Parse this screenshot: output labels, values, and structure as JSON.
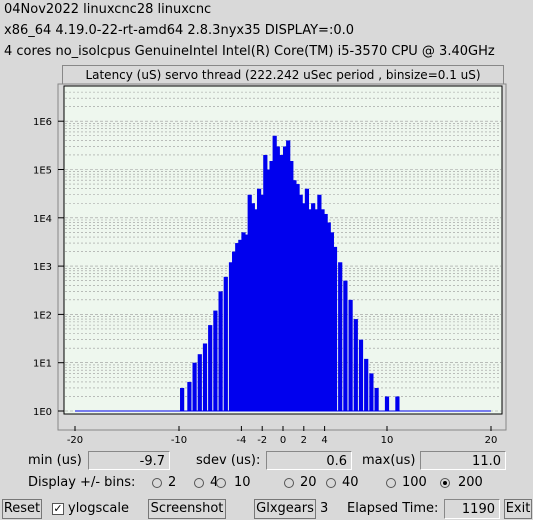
{
  "header": {
    "line1": "04Nov2022 linuxcnc28 linuxcnc",
    "line2": " x86_64  4.19.0-22-rt-amd64  2.8.3nyx35  DISPLAY=:0.0",
    "line3": " 4 cores  no_isolcpus   GenuineIntel  Intel(R) Core(TM) i5-3570 CPU @ 3.40GHz"
  },
  "plot_title": "Latency (uS) servo thread (222.242 uSec period , binsize=0.1 uS)",
  "colors": {
    "bars": "#0000ee",
    "plot_bg": "#eef7ee",
    "grid": "#888888"
  },
  "chart_data": {
    "type": "bar",
    "title": "Latency (uS) servo thread (222.242 uSec period , binsize=0.1 uS)",
    "xlabel": "",
    "ylabel": "",
    "xlim": [
      -20,
      20
    ],
    "log_y": true,
    "y_tick_labels": [
      "1E0",
      "1E1",
      "1E2",
      "1E3",
      "1E4",
      "1E5",
      "1E6"
    ],
    "x_tick_labels": [
      "-20",
      "-10",
      "-4",
      "-2",
      "0",
      "2",
      "4",
      "10",
      "20"
    ],
    "x_ticks": [
      -20,
      -10,
      -4,
      -2,
      0,
      2,
      4,
      10,
      20
    ],
    "grid": true,
    "series": [
      {
        "x": [
          -9.7,
          -9,
          -8.5,
          -8,
          -7.5,
          -7,
          -6.5,
          -6,
          -5.5,
          -5,
          -4.7,
          -4.4,
          -4.1,
          -3.8,
          -3.5,
          -3.2,
          -2.9,
          -2.6,
          -2.3,
          -2,
          -1.7,
          -1.4,
          -1.1,
          -0.8,
          -0.5,
          -0.2,
          0,
          0.2,
          0.5,
          0.8,
          1.1,
          1.4,
          1.7,
          2,
          2.3,
          2.6,
          2.9,
          3.2,
          3.5,
          3.8,
          4.1,
          4.4,
          4.7,
          5,
          5.5,
          6,
          6.5,
          7,
          7.5,
          8,
          8.5,
          9,
          10,
          11
        ],
        "values": [
          3,
          4,
          10,
          15,
          25,
          60,
          120,
          300,
          600,
          1200,
          2000,
          3000,
          3500,
          5000,
          4500,
          30000,
          20000,
          15000,
          40000,
          30000,
          200000,
          100000,
          150000,
          500000,
          300000,
          200000,
          100000,
          300000,
          400000,
          150000,
          60000,
          50000,
          30000,
          20000,
          40000,
          15000,
          20000,
          15000,
          30000,
          15000,
          12000,
          8000,
          5000,
          2500,
          1200,
          500,
          200,
          80,
          30,
          12,
          6,
          3,
          2,
          2
        ]
      }
    ]
  },
  "stats": {
    "min_label": "min (us)",
    "min_value": "-9.7",
    "sdev_label": "sdev (us):",
    "sdev_value": "0.6",
    "max_label": "max(us)",
    "max_value": "11.0"
  },
  "bins": {
    "label": "Display +/- bins:",
    "options": [
      "2",
      "4",
      "10",
      "20",
      "40",
      "100",
      "200"
    ],
    "selected": "200"
  },
  "bottom": {
    "reset": "Reset",
    "ylogscale": "ylogscale",
    "ylogscale_checked": true,
    "screenshot": "Screenshot",
    "glxgears": "Glxgears",
    "glx_count": "3",
    "elapsed_label": "Elapsed Time:",
    "elapsed_value": "1190",
    "exit": "Exit"
  }
}
